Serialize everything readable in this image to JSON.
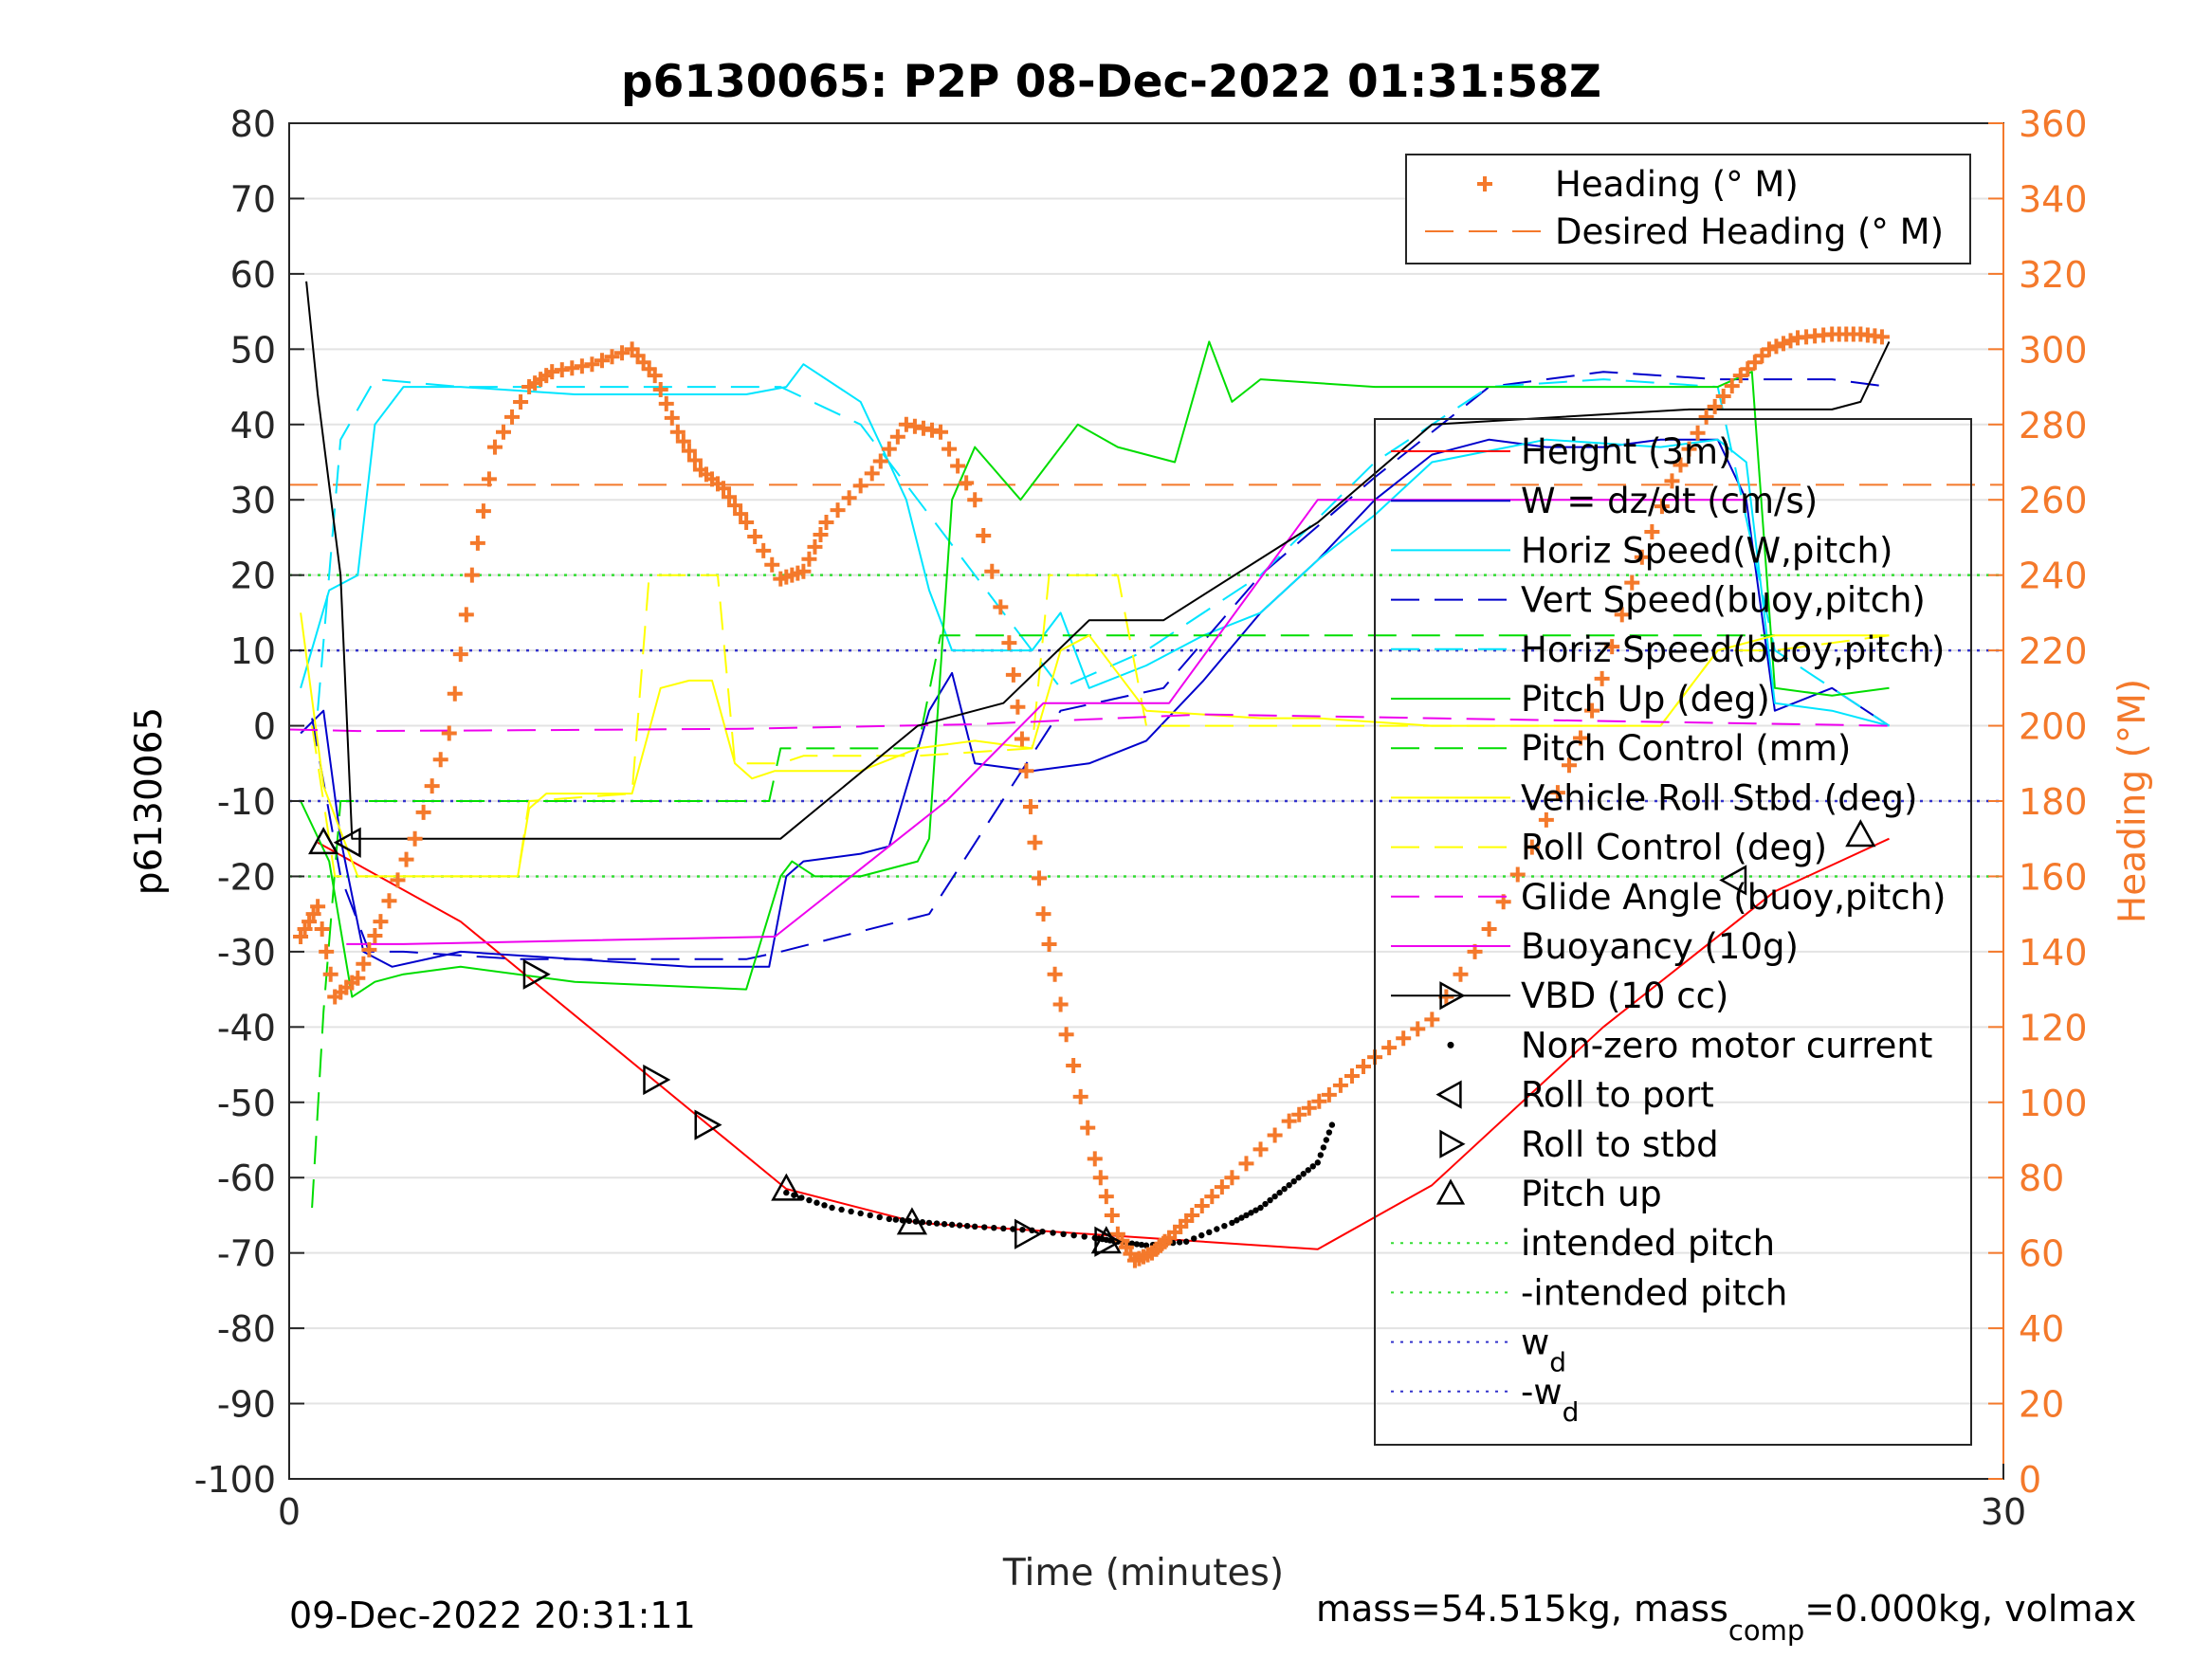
{
  "chart_data": {
    "type": "line",
    "title": "p6130065: P2P 08-Dec-2022 01:31:58Z",
    "xlabel": "Time (minutes)",
    "ylabel_left": "p6130065",
    "ylabel_right": "Heading (°M)",
    "xlim": [
      0,
      30
    ],
    "ylim_left": [
      -100,
      80
    ],
    "ylim_right": [
      0,
      360
    ],
    "xticks": [
      "0",
      "30"
    ],
    "yticks_left": [
      "80",
      "70",
      "60",
      "50",
      "40",
      "30",
      "20",
      "10",
      "0",
      "-10",
      "-20",
      "-30",
      "-40",
      "-50",
      "-60",
      "-70",
      "-80",
      "-90",
      "-100"
    ],
    "yticks_right": [
      "360",
      "340",
      "320",
      "300",
      "280",
      "260",
      "240",
      "220",
      "200",
      "180",
      "160",
      "140",
      "120",
      "100",
      "80",
      "60",
      "40",
      "20",
      "0"
    ],
    "grid": "horizontal",
    "footer_left": "09-Dec-2022 20:31:11",
    "footer_right": {
      "pre": "mass=54.515kg, mass",
      "sub": "comp",
      "post": "=0.000kg, volmax"
    },
    "legend_right": [
      {
        "name": "Heading (° M)",
        "color": "#f4792b",
        "style": "plus"
      },
      {
        "name": "Desired Heading (° M)",
        "color": "#f4792b",
        "style": "dashed"
      }
    ],
    "legend_left": [
      {
        "name": "Height (3m)",
        "color": "#ff0000",
        "style": "solid"
      },
      {
        "name": "W = dz/dt (cm/s)",
        "color": "#0000cc",
        "style": "solid"
      },
      {
        "name": "Horiz Speed(W,pitch)",
        "color": "#00e5ff",
        "style": "solid"
      },
      {
        "name": "Vert Speed(buoy,pitch)",
        "color": "#0000cc",
        "style": "dashed"
      },
      {
        "name": "Horiz Speed(buoy,pitch)",
        "color": "#00e5ff",
        "style": "dashed"
      },
      {
        "name": "Pitch Up (deg)",
        "color": "#00dd00",
        "style": "solid"
      },
      {
        "name": "Pitch Control (mm)",
        "color": "#00dd00",
        "style": "dashed"
      },
      {
        "name": "Vehicle Roll Stbd (deg)",
        "color": "#ffff00",
        "style": "solid"
      },
      {
        "name": "Roll Control (deg)",
        "color": "#ffff00",
        "style": "dashed"
      },
      {
        "name": "Glide Angle (buoy,pitch)",
        "color": "#ee00ee",
        "style": "dashed"
      },
      {
        "name": "Buoyancy (10g)",
        "color": "#ee00ee",
        "style": "solid"
      },
      {
        "name": "VBD (10 cc)",
        "color": "#000000",
        "style": "solid-triangle"
      },
      {
        "name": "Non-zero motor current",
        "color": "#000000",
        "style": "dot"
      },
      {
        "name": "Roll to port",
        "color": "#000000",
        "style": "tri-left"
      },
      {
        "name": "Roll to stbd",
        "color": "#000000",
        "style": "tri-right"
      },
      {
        "name": "Pitch up",
        "color": "#000000",
        "style": "tri-up"
      },
      {
        "name": "intended pitch",
        "color": "#33dd33",
        "style": "dotted"
      },
      {
        "name": "-intended pitch",
        "color": "#33dd33",
        "style": "dotted"
      },
      {
        "name": "w",
        "sub": "d",
        "color": "#3333cc",
        "style": "dotted"
      },
      {
        "name": "-w",
        "sub": "d",
        "color": "#3333cc",
        "style": "dotted"
      }
    ],
    "constants": [
      {
        "name": "intended pitch",
        "y": 20
      },
      {
        "name": "-intended pitch",
        "y": -20
      },
      {
        "name": "w_d",
        "y": 10
      },
      {
        "name": "-w_d",
        "y": -10
      },
      {
        "name": "Desired Heading (° M)",
        "y_right": 264
      }
    ],
    "series": [
      {
        "name": "Height (3m)",
        "x": [
          0.5,
          3,
          8.7,
          11,
          13,
          15,
          18,
          20,
          23,
          26,
          28
        ],
        "y": [
          -15.5,
          -26,
          -61.5,
          -66,
          -67,
          -68,
          -69.5,
          -61,
          -40,
          -22,
          -15
        ]
      },
      {
        "name": "W = dz/dt (cm/s)",
        "x": [
          0.2,
          0.6,
          0.9,
          1.3,
          1.8,
          3,
          5,
          7,
          8.4,
          8.7,
          9,
          10,
          10.5,
          11.2,
          11.6,
          12,
          13,
          14,
          15,
          16,
          17,
          18,
          19,
          20,
          21,
          22,
          23,
          24,
          25,
          25.5,
          26,
          27,
          28
        ],
        "y": [
          -1,
          2,
          -15,
          -30,
          -32,
          -30,
          -31,
          -32,
          -32,
          -20,
          -18,
          -17,
          -16,
          2,
          7,
          -5,
          -6,
          -5,
          -2,
          6,
          15,
          22,
          30,
          36,
          38,
          37,
          37,
          38,
          38,
          30,
          2,
          5,
          0
        ]
      },
      {
        "name": "Horiz Speed(W,pitch)",
        "x": [
          0.2,
          0.7,
          1.2,
          1.5,
          2,
          3,
          5,
          8,
          8.7,
          9,
          10,
          10.8,
          11.2,
          11.6,
          12,
          13,
          13.5,
          14,
          15,
          16,
          17,
          18,
          19,
          20,
          22,
          24,
          25,
          25.5,
          26,
          27,
          28
        ],
        "y": [
          5,
          18,
          20,
          40,
          45,
          45,
          44,
          44,
          45,
          48,
          43,
          30,
          18,
          10,
          10,
          10,
          15,
          5,
          8,
          12,
          15,
          22,
          28,
          35,
          38,
          37,
          38,
          35,
          3,
          2,
          0
        ]
      },
      {
        "name": "Vert Speed(buoy,pitch)",
        "x": [
          0.4,
          0.9,
          1.4,
          2,
          4,
          8,
          8.6,
          11.2,
          13.5,
          15.3,
          17,
          19,
          21,
          23,
          25,
          27,
          28
        ],
        "y": [
          1,
          -20,
          -30,
          -30,
          -31,
          -31,
          -30,
          -25,
          2,
          5,
          20,
          33,
          45,
          47,
          46,
          46,
          45
        ]
      },
      {
        "name": "Horiz Speed(buoy,pitch)",
        "x": [
          0.5,
          0.9,
          1.5,
          3,
          5,
          8,
          8.6,
          10,
          11.5,
          12,
          13.5,
          15,
          17,
          19,
          21,
          23,
          25,
          26,
          27,
          28
        ],
        "y": [
          2,
          38,
          46,
          45,
          45,
          45,
          45,
          40,
          25,
          20,
          5,
          10,
          20,
          35,
          45,
          46,
          45,
          10,
          5,
          0
        ]
      },
      {
        "name": "Pitch Up (deg)",
        "x": [
          0.2,
          0.7,
          1.1,
          1.5,
          2,
          3,
          5,
          8,
          8.6,
          8.8,
          9.2,
          10,
          11,
          11.2,
          11.6,
          12,
          12.8,
          13.3,
          13.8,
          14.5,
          15.5,
          16.1,
          16.5,
          17,
          19,
          21,
          23,
          25,
          25.6,
          26,
          27,
          28
        ],
        "y": [
          -10,
          -18,
          -36,
          -34,
          -33,
          -32,
          -34,
          -35,
          -20,
          -18,
          -20,
          -20,
          -18,
          -15,
          30,
          37,
          30,
          35,
          40,
          37,
          35,
          51,
          43,
          46,
          45,
          45,
          45,
          45,
          47,
          5,
          4,
          5
        ]
      },
      {
        "name": "Pitch Control (mm)",
        "x": [
          0.4,
          0.6,
          0.9,
          2,
          8,
          8.4,
          8.6,
          11,
          11.4,
          11.8,
          15,
          17,
          20,
          26
        ],
        "y": [
          -64,
          -38,
          -10,
          -10,
          -10,
          -10,
          -3,
          -3,
          12,
          12,
          12,
          12,
          12,
          12
        ]
      },
      {
        "name": "Vehicle Roll Stbd (deg)",
        "x": [
          0.2,
          0.6,
          1.2,
          1.5,
          2,
          3,
          4,
          4.2,
          4.5,
          5,
          6,
          6.5,
          7,
          7.4,
          7.8,
          8.1,
          8.5,
          9,
          10,
          11,
          12,
          13,
          13.5,
          14,
          15,
          17,
          18,
          20,
          22,
          24,
          25,
          26,
          27,
          28
        ],
        "y": [
          15,
          -8,
          -20,
          -20,
          -20,
          -20,
          -20,
          -11,
          -9,
          -9,
          -9,
          5,
          6,
          6,
          -5,
          -7,
          -6,
          -6,
          -6,
          -3,
          -2,
          -3,
          10,
          12,
          2,
          1,
          1,
          0,
          0,
          0,
          10,
          12,
          12,
          12
        ]
      },
      {
        "name": "Roll Control (deg)",
        "x": [
          0.4,
          0.8,
          1.2,
          2,
          4,
          4.2,
          6,
          6.3,
          6.6,
          7.5,
          7.8,
          8.6,
          9,
          11,
          13,
          13.3,
          14.5,
          15,
          20,
          24,
          25,
          26,
          28
        ],
        "y": [
          0,
          -20,
          -20,
          -20,
          -20,
          -10,
          -9,
          20,
          20,
          20,
          -5,
          -5,
          -4,
          -4,
          -3,
          20,
          20,
          0,
          0,
          0,
          10,
          10,
          12
        ]
      },
      {
        "name": "Glide Angle (buoy,pitch)",
        "x": [
          0,
          1.2,
          4,
          8,
          12,
          16,
          20,
          24,
          28
        ],
        "y": [
          -0.5,
          -0.7,
          -0.6,
          -0.4,
          0.2,
          1.5,
          1,
          0.5,
          0
        ]
      },
      {
        "name": "Buoyancy (10g)",
        "x": [
          1,
          2,
          8.5,
          11.5,
          13.2,
          15.4,
          18,
          18.3,
          25.5
        ],
        "y": [
          -29,
          -29,
          -28,
          -10,
          3,
          3,
          30,
          30,
          30
        ]
      },
      {
        "name": "VBD (10 cc)",
        "x": [
          0.3,
          0.5,
          0.9,
          1.1,
          2,
          5,
          8.6,
          11,
          12.5,
          14,
          15.3,
          18,
          20,
          24.5,
          25.5,
          27,
          27.5,
          28
        ],
        "y": [
          59,
          44,
          20,
          -15,
          -15,
          -15,
          -15,
          0,
          3,
          14,
          14,
          27,
          40,
          42,
          42,
          42,
          43,
          51
        ]
      },
      {
        "name": "Non-zero motor current",
        "x": [
          8.7,
          9.5,
          10.5,
          11.2,
          12,
          13,
          14.1,
          14.5,
          15,
          15.7,
          16.5,
          17,
          17.5,
          18,
          18.3
        ],
        "y": [
          -62,
          -64,
          -65.5,
          -66,
          -66.5,
          -67,
          -68,
          -68.5,
          -69,
          -68.5,
          -66,
          -64,
          -61,
          -58,
          -52
        ]
      },
      {
        "name": "Heading (° M)",
        "x_right_axis": true,
        "x": [
          0.2,
          0.5,
          0.8,
          1.2,
          1.6,
          2.2,
          2.8,
          3.2,
          3.6,
          4.2,
          4.6,
          5.3,
          6,
          6.4,
          6.8,
          7.2,
          7.6,
          8,
          8.6,
          9,
          9.4,
          10.2,
          10.8,
          11.4,
          12,
          12.6,
          12.9,
          13.2,
          13.6,
          14.1,
          14.5,
          14.8,
          15.1,
          15.4,
          15.8,
          16.5,
          17.5,
          18.2,
          19,
          20,
          21,
          22,
          22.8,
          23.5,
          24.2,
          24.8,
          25.4,
          25.9,
          26.4,
          27,
          27.5,
          28
        ],
        "y": [
          144,
          152,
          128,
          133,
          148,
          170,
          198,
          240,
          274,
          290,
          294,
          296,
          300,
          293,
          278,
          268,
          263,
          254,
          239,
          241,
          254,
          267,
          280,
          278,
          260,
          222,
          188,
          150,
          118,
          85,
          65,
          58,
          60,
          64,
          70,
          80,
          95,
          102,
          112,
          122,
          146,
          175,
          204,
          238,
          265,
          282,
          293,
          300,
          303,
          304,
          304,
          303
        ]
      }
    ],
    "markers": [
      {
        "type": "Pitch up",
        "x": 0.6,
        "y": -15.5
      },
      {
        "type": "Roll to port",
        "x": 1.05,
        "y": -15.5
      },
      {
        "type": "Roll to stbd",
        "x": 4.3,
        "y": -33
      },
      {
        "type": "Roll to stbd",
        "x": 6.4,
        "y": -47
      },
      {
        "type": "Roll to stbd",
        "x": 7.3,
        "y": -53
      },
      {
        "type": "Pitch up",
        "x": 8.7,
        "y": -61.5
      },
      {
        "type": "Pitch up",
        "x": 10.9,
        "y": -66
      },
      {
        "type": "Roll to stbd",
        "x": 12.9,
        "y": -67.5
      },
      {
        "type": "Roll to stbd",
        "x": 14.3,
        "y": -68.5
      },
      {
        "type": "Pitch up",
        "x": 14.3,
        "y": -68.5
      },
      {
        "type": "Roll to port",
        "x": 25.3,
        "y": -20.5
      },
      {
        "type": "Pitch up",
        "x": 27.5,
        "y": -14.5
      }
    ]
  }
}
